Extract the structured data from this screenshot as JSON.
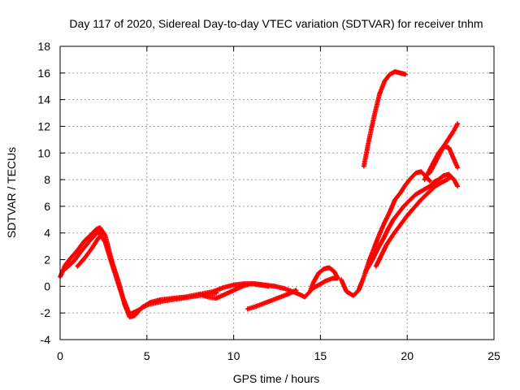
{
  "chart_data": {
    "type": "scatter",
    "title": "Day 117 of 2020, Sidereal Day-to-day VTEC variation (SDTVAR) for receiver tnhm",
    "xlabel": "GPS time / hours",
    "ylabel": "SDTVAR / TECUs",
    "xlim": [
      0,
      25
    ],
    "ylim": [
      -4,
      18
    ],
    "xticks": [
      "0",
      "5",
      "10",
      "15",
      "20",
      "25"
    ],
    "yticks": [
      "-4",
      "-2",
      "0",
      "2",
      "4",
      "6",
      "8",
      "10",
      "12",
      "14",
      "16",
      "18"
    ],
    "grid": true,
    "marker": "+",
    "color": "#ff0000",
    "series": [
      {
        "x": [
          0.0,
          0.3,
          0.6,
          1.0,
          1.4,
          1.8,
          2.1,
          2.3,
          2.6,
          3.0,
          3.4,
          3.7,
          4.0,
          4.3,
          4.7,
          5.2,
          5.8,
          6.5,
          7.2,
          8.0,
          8.8,
          9.4,
          10.0,
          10.6,
          11.2,
          11.8,
          12.4,
          13.0,
          13.6,
          14.1,
          14.4,
          14.6,
          14.9,
          15.2,
          15.5,
          15.8,
          16.0
        ],
        "y": [
          0.7,
          1.6,
          2.1,
          2.7,
          3.4,
          3.9,
          4.3,
          4.4,
          3.8,
          1.8,
          0.2,
          -1.3,
          -2.3,
          -2.2,
          -1.6,
          -1.2,
          -1.0,
          -0.9,
          -0.8,
          -0.6,
          -0.4,
          -0.1,
          0.1,
          0.2,
          0.2,
          0.1,
          0.0,
          -0.2,
          -0.5,
          -0.8,
          -0.4,
          0.3,
          1.0,
          1.3,
          1.4,
          1.1,
          0.6
        ]
      },
      {
        "x": [
          0.3,
          0.8,
          1.2,
          1.7,
          2.2,
          2.6,
          3.1,
          3.6,
          4.0,
          4.5,
          5.0,
          6.0,
          7.0,
          8.0,
          9.0
        ],
        "y": [
          1.3,
          1.9,
          2.6,
          3.4,
          4.1,
          3.3,
          1.2,
          -0.8,
          -2.1,
          -1.8,
          -1.4,
          -1.1,
          -0.9,
          -0.7,
          -0.5
        ]
      },
      {
        "x": [
          1.0,
          1.4,
          1.8,
          2.2,
          2.5
        ],
        "y": [
          1.5,
          2.1,
          2.8,
          3.6,
          4.0
        ]
      },
      {
        "x": [
          8.0,
          8.5,
          9.0,
          9.5,
          10.0,
          10.5,
          11.0,
          11.5,
          12.0
        ],
        "y": [
          -0.6,
          -0.8,
          -0.9,
          -0.6,
          -0.3,
          0.0,
          0.2,
          0.1,
          0.0
        ]
      },
      {
        "x": [
          10.8,
          11.3,
          11.9,
          12.5,
          13.1,
          13.6
        ],
        "y": [
          -1.7,
          -1.5,
          -1.2,
          -0.9,
          -0.6,
          -0.3
        ]
      },
      {
        "x": [
          14.5,
          14.9,
          15.3,
          15.7,
          16.0
        ],
        "y": [
          -0.2,
          0.1,
          0.4,
          0.6,
          0.6
        ]
      },
      {
        "x": [
          16.2,
          16.5,
          16.9,
          17.2,
          17.5,
          17.8,
          18.1,
          18.4,
          18.7,
          19.0,
          19.3,
          19.6,
          19.9,
          20.2,
          20.5,
          20.8,
          21.1,
          21.3
        ],
        "y": [
          0.5,
          -0.4,
          -0.7,
          -0.3,
          0.7,
          1.9,
          2.9,
          3.9,
          4.8,
          5.6,
          6.5,
          7.0,
          7.6,
          8.1,
          8.5,
          8.6,
          8.2,
          7.9
        ]
      },
      {
        "x": [
          17.6,
          18.0,
          18.3,
          18.6,
          18.9,
          19.2,
          19.5,
          19.8,
          20.1,
          20.5,
          20.9,
          21.3,
          21.6
        ],
        "y": [
          1.1,
          2.0,
          2.8,
          3.5,
          4.3,
          5.0,
          5.5,
          6.0,
          6.4,
          6.9,
          7.2,
          7.5,
          7.8
        ]
      },
      {
        "x": [
          18.2,
          18.5,
          18.8,
          19.2,
          19.6,
          20.0,
          20.4,
          20.8,
          21.2,
          21.6,
          22.0,
          22.3,
          22.5
        ],
        "y": [
          1.5,
          2.3,
          3.1,
          3.9,
          4.6,
          5.3,
          5.9,
          6.5,
          7.0,
          7.5,
          7.8,
          8.0,
          8.2
        ]
      },
      {
        "x": [
          17.5,
          17.8,
          18.1,
          18.4,
          18.7,
          19.0,
          19.3,
          19.6,
          19.9
        ],
        "y": [
          9.0,
          11.0,
          12.8,
          14.4,
          15.4,
          15.9,
          16.1,
          16.0,
          15.9
        ]
      },
      {
        "x": [
          21.3,
          21.7,
          22.1,
          22.4,
          22.7,
          22.9
        ],
        "y": [
          8.5,
          9.5,
          10.5,
          11.1,
          11.7,
          12.2
        ]
      },
      {
        "x": [
          21.0,
          21.4,
          21.8,
          22.1,
          22.4,
          22.7,
          22.9
        ],
        "y": [
          8.0,
          9.0,
          10.0,
          10.5,
          10.4,
          9.5,
          8.9
        ]
      },
      {
        "x": [
          21.5,
          21.8,
          22.1,
          22.4,
          22.7,
          22.9
        ],
        "y": [
          7.8,
          8.0,
          8.3,
          8.4,
          8.0,
          7.5
        ]
      }
    ]
  }
}
